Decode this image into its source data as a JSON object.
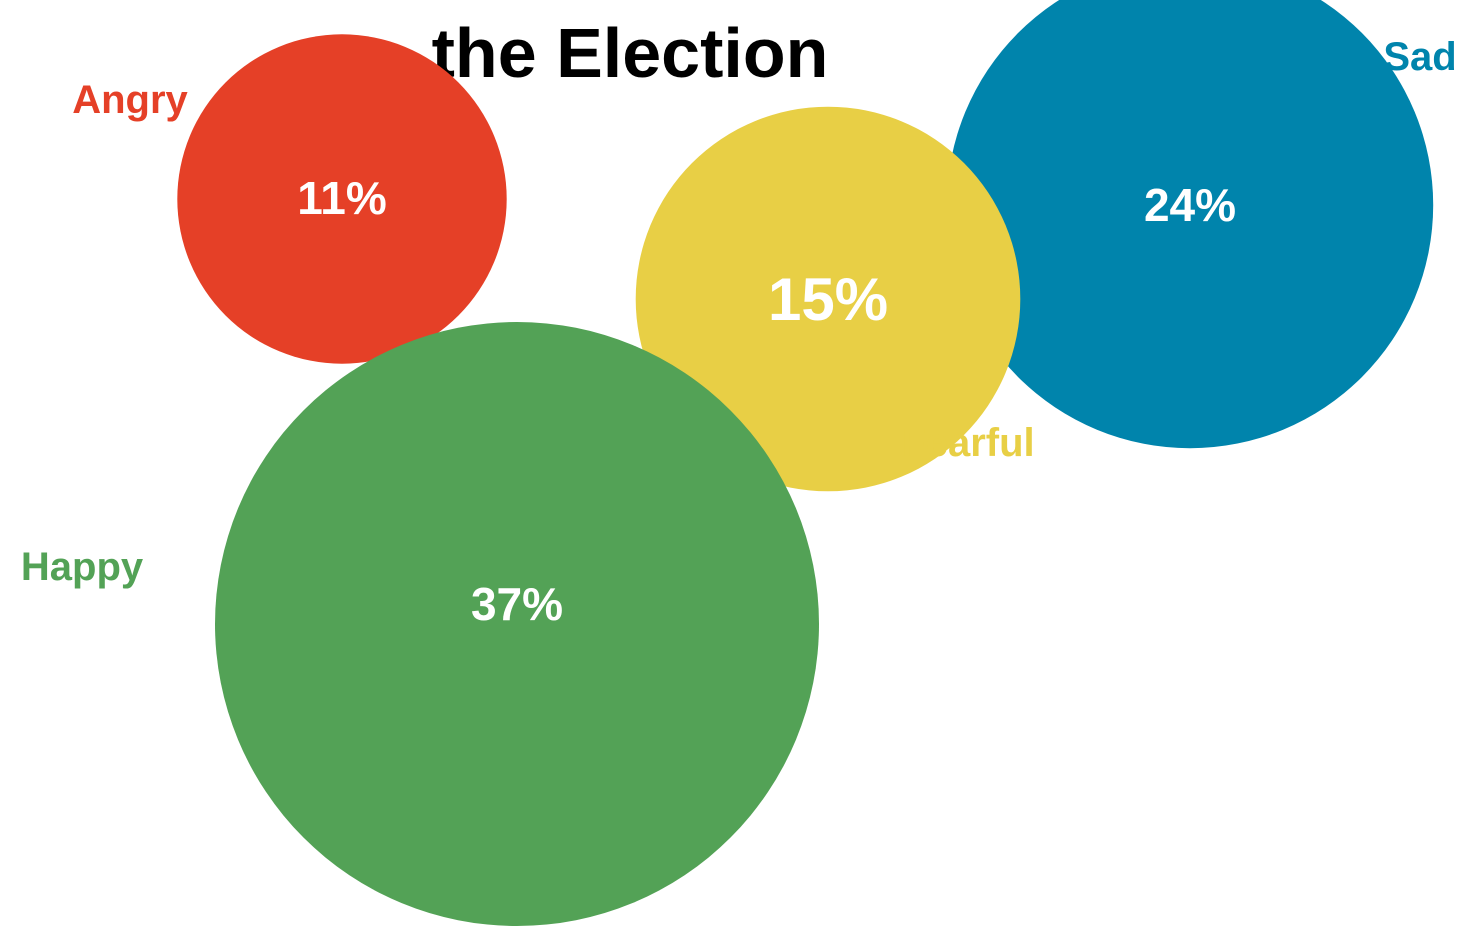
{
  "chart_data": {
    "type": "bubble",
    "title": "the Election",
    "categories": [
      "Angry",
      "Sad",
      "Fearful",
      "Happy"
    ],
    "values": [
      11,
      24,
      15,
      37
    ],
    "value_labels": [
      "11%",
      "24%",
      "15%",
      "37%"
    ],
    "unit": "%",
    "colors": {
      "Angry": "#e54027",
      "Sad": "#0084ac",
      "Fearful": "#e8cf45",
      "Happy": "#53a256"
    },
    "legend": "none",
    "grid": false
  }
}
